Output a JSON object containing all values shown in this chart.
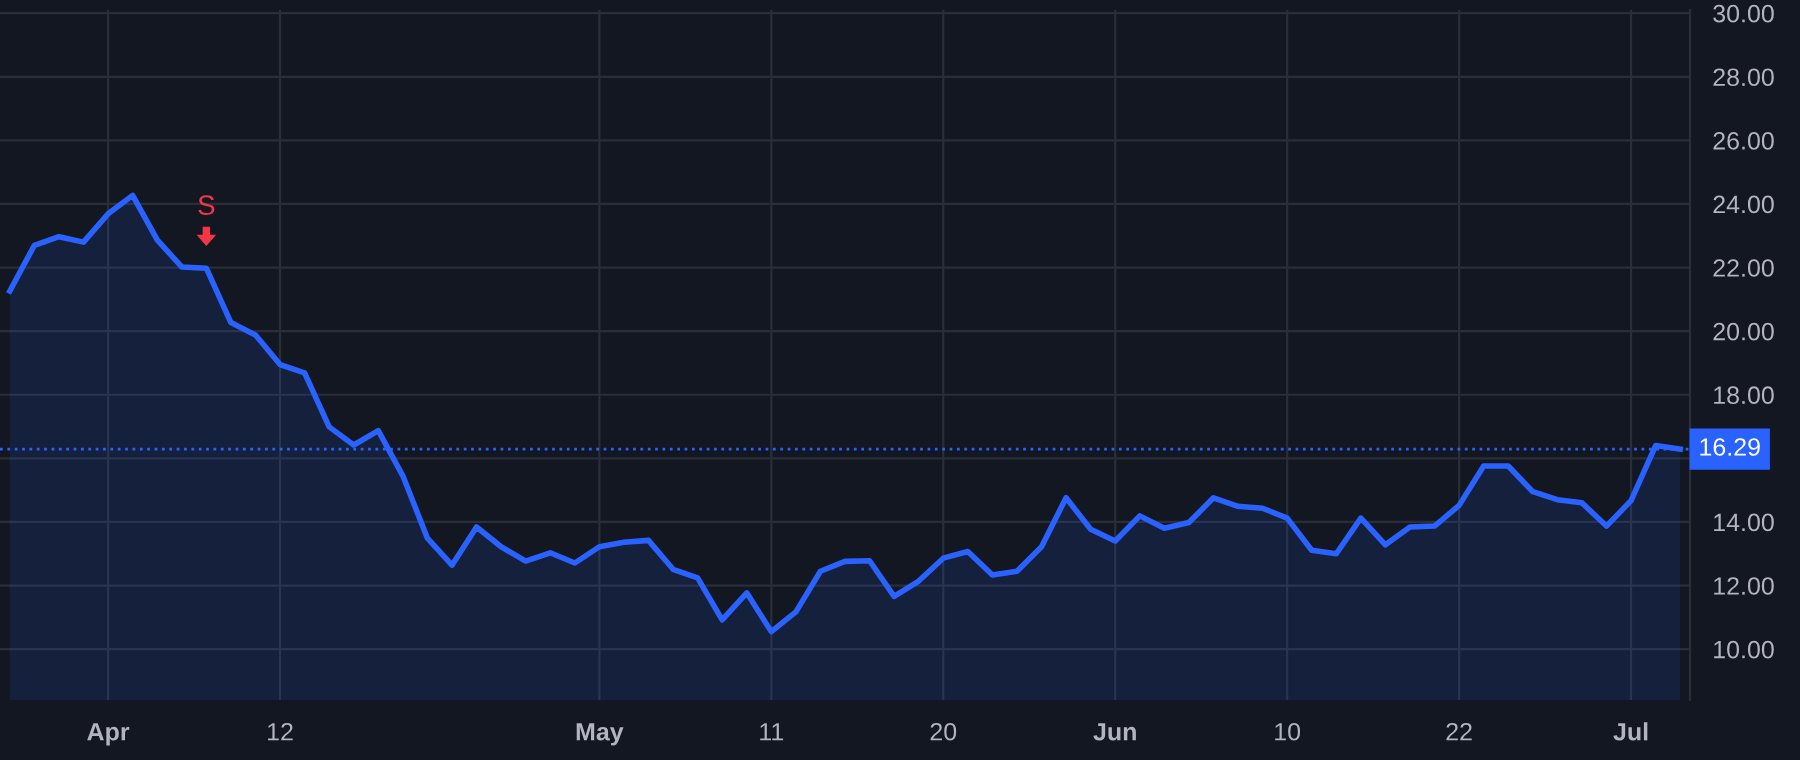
{
  "chart_data": {
    "type": "area",
    "categories": [
      null,
      null,
      null,
      null,
      "Apr",
      null,
      null,
      null,
      null,
      null,
      null,
      "12",
      null,
      null,
      null,
      null,
      null,
      null,
      null,
      null,
      null,
      null,
      null,
      null,
      "May",
      null,
      null,
      null,
      null,
      null,
      null,
      "11",
      null,
      null,
      null,
      null,
      null,
      null,
      "20",
      null,
      null,
      null,
      null,
      null,
      null,
      "Jun",
      null,
      null,
      null,
      null,
      null,
      null,
      "10",
      null,
      null,
      null,
      null,
      null,
      null,
      "22",
      null,
      null,
      null,
      null,
      null,
      null,
      "Jul",
      null,
      null
    ],
    "series": [
      {
        "color": "#2962ff",
        "values": [
          21.26,
          22.7,
          22.97,
          22.8,
          23.69,
          24.27,
          22.87,
          22.02,
          21.98,
          20.27,
          19.88,
          18.95,
          18.69,
          16.99,
          16.42,
          16.87,
          15.45,
          13.49,
          12.64,
          13.84,
          13.22,
          12.77,
          13.03,
          12.71,
          13.22,
          13.36,
          13.42,
          12.51,
          12.24,
          10.92,
          11.77,
          10.55,
          11.17,
          12.45,
          12.76,
          12.78,
          11.66,
          12.14,
          12.86,
          13.07,
          12.33,
          12.45,
          13.22,
          14.76,
          13.77,
          13.4,
          14.19,
          13.8,
          13.98,
          14.76,
          14.49,
          14.43,
          14.12,
          13.11,
          13.0,
          14.12,
          13.28,
          13.84,
          13.87,
          14.52,
          15.76,
          15.76,
          14.95,
          14.7,
          14.6,
          13.87,
          14.67,
          16.4,
          16.29
        ]
      }
    ],
    "ylim": [
      8.4,
      30.1
    ],
    "yticks": [
      {
        "value": 10,
        "label": "10.00"
      },
      {
        "value": 12,
        "label": "12.00"
      },
      {
        "value": 14,
        "label": "14.00"
      },
      {
        "value": 16,
        "label": null
      },
      {
        "value": 18,
        "label": "18.00"
      },
      {
        "value": 20,
        "label": "20.00"
      },
      {
        "value": 22,
        "label": "22.00"
      },
      {
        "value": 24,
        "label": "24.00"
      },
      {
        "value": 26,
        "label": "26.00"
      },
      {
        "value": 28,
        "label": "28.00"
      },
      {
        "value": 30,
        "label": "30.00"
      }
    ],
    "ref_lines": [
      {
        "axis": "y",
        "value": 16.29,
        "label": "16.29",
        "color": "#2962ff",
        "line_style": "dotted"
      }
    ],
    "annotations": [
      {
        "text": "S",
        "y": 21.98
      }
    ],
    "grid": true,
    "line_style": "solid"
  }
}
